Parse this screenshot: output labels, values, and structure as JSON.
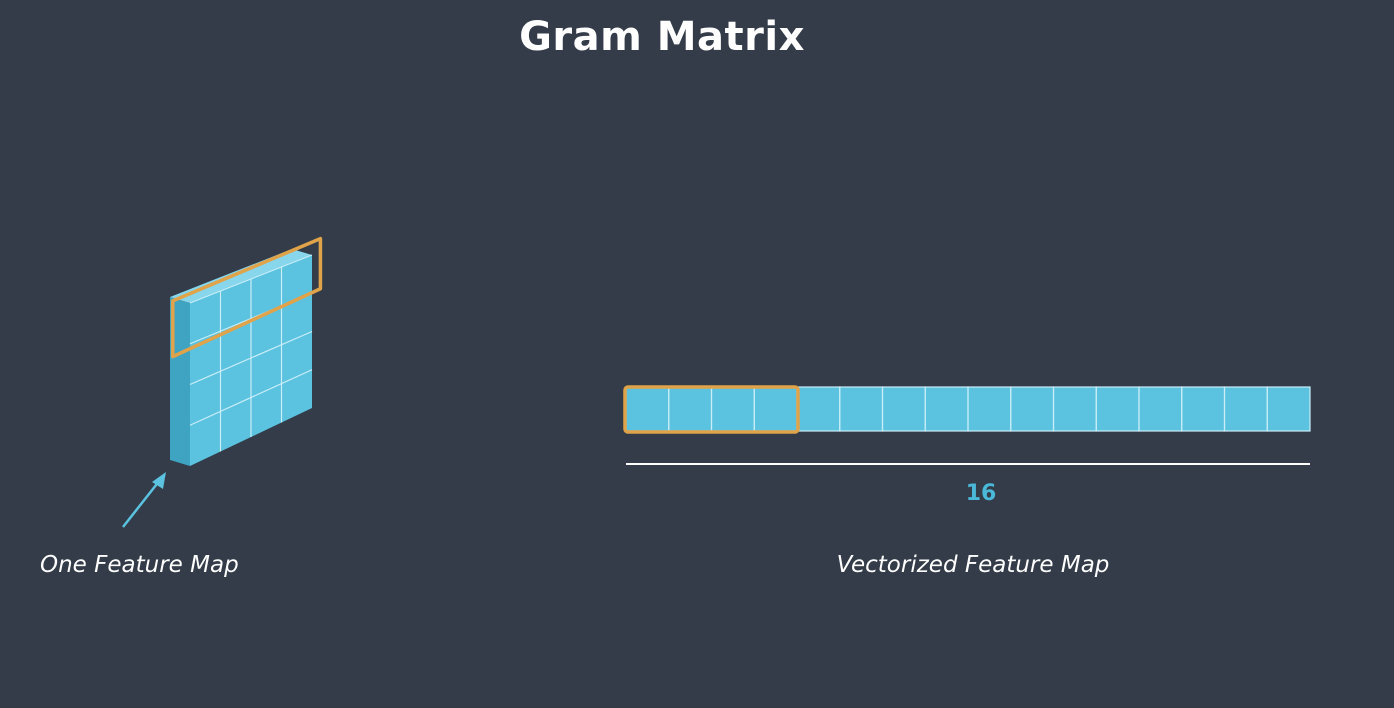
{
  "title": "Gram Matrix",
  "feature_map": {
    "caption": "One Feature Map",
    "rows": 4,
    "cols": 4,
    "highlighted_row": 1
  },
  "vector": {
    "caption": "Vectorized Feature Map",
    "length_label": "16",
    "cells": 16,
    "highlighted_cells": 4
  },
  "colors": {
    "background": "#333c48",
    "cell_fill": "#5bc2df",
    "cell_side": "#3fa3c2",
    "cell_top": "#87d6ec",
    "grid_line": "#c9eef8",
    "highlight": "#e0a349",
    "axis_line": "#ffffff",
    "length_text": "#4ab8d8"
  }
}
